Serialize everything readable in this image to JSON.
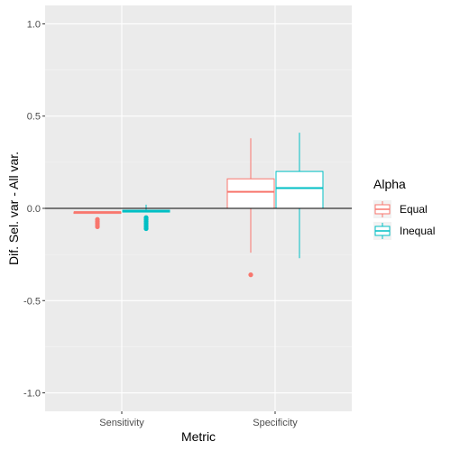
{
  "chart_data": {
    "type": "boxplot",
    "title": "",
    "xlabel": "Metric",
    "ylabel": "Dif. Sel. var - All var.",
    "ylim": [
      -1.1,
      1.1
    ],
    "yticks": [
      "-1.0",
      "-0.5",
      "0.0",
      "0.5",
      "1.0"
    ],
    "ytick_values": [
      -1.0,
      -0.5,
      0.0,
      0.5,
      1.0
    ],
    "categories": [
      "Sensitivity",
      "Specificity"
    ],
    "reference_line_y": 0,
    "background": "#ebebeb",
    "grid": true,
    "legend": {
      "title": "Alpha",
      "position": "right"
    },
    "series": [
      {
        "name": "Equal",
        "color": "#f8766d",
        "boxes": [
          {
            "category": "Sensitivity",
            "whisker_low": -0.02,
            "q1": -0.02,
            "median": -0.02,
            "q3": -0.02,
            "whisker_high": -0.02,
            "outliers": [
              -0.06,
              -0.07,
              -0.08,
              -0.09,
              -0.1
            ]
          },
          {
            "category": "Specificity",
            "whisker_low": -0.24,
            "q1": 0.0,
            "median": 0.09,
            "q3": 0.16,
            "whisker_high": 0.38,
            "outliers": [
              -0.36
            ]
          }
        ]
      },
      {
        "name": "Inequal",
        "color": "#00bfc4",
        "boxes": [
          {
            "category": "Sensitivity",
            "whisker_low": -0.02,
            "q1": -0.02,
            "median": -0.015,
            "q3": -0.01,
            "whisker_high": 0.02,
            "outliers": [
              -0.05,
              -0.06,
              -0.07,
              -0.08,
              -0.09,
              -0.1,
              -0.11
            ]
          },
          {
            "category": "Specificity",
            "whisker_low": -0.27,
            "q1": 0.0,
            "median": 0.11,
            "q3": 0.2,
            "whisker_high": 0.41,
            "outliers": []
          }
        ]
      }
    ]
  }
}
